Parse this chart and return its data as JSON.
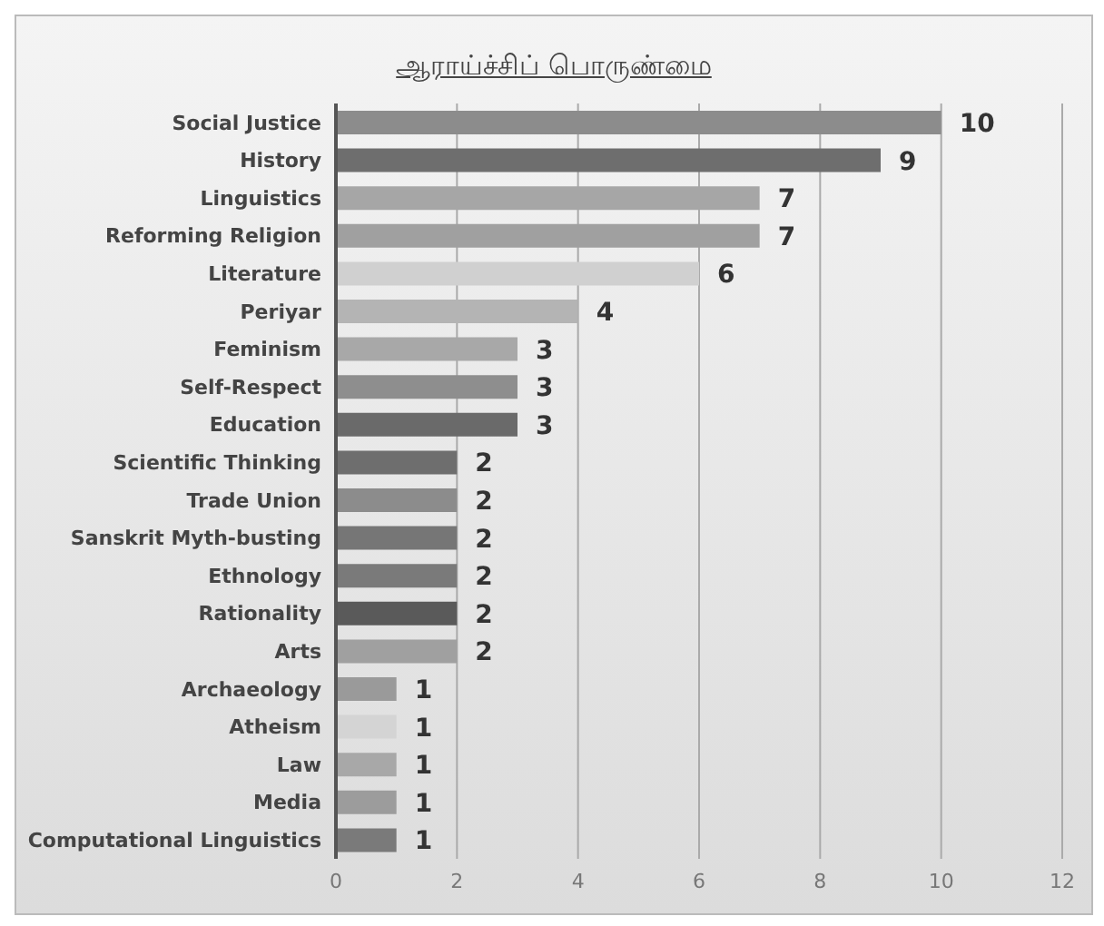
{
  "chart_data": {
    "type": "bar",
    "orientation": "horizontal",
    "title": "ஆராய்ச்சிப் பொருண்மை",
    "categories": [
      "Social Justice",
      "History",
      "Linguistics",
      "Reforming Religion",
      "Literature",
      "Periyar",
      "Feminism",
      "Self-Respect",
      "Education",
      "Scientific Thinking",
      "Trade Union",
      "Sanskrit Myth-busting",
      "Ethnology",
      "Rationality",
      "Arts",
      "Archaeology",
      "Atheism",
      "Law",
      "Media",
      "Computational Linguistics"
    ],
    "values": [
      10,
      9,
      7,
      7,
      6,
      4,
      3,
      3,
      3,
      2,
      2,
      2,
      2,
      2,
      2,
      1,
      1,
      1,
      1,
      1
    ],
    "colors": [
      "#8c8c8c",
      "#6e6e6e",
      "#a6a6a6",
      "#a0a0a0",
      "#d0d0d0",
      "#b4b4b4",
      "#a8a8a8",
      "#8e8e8e",
      "#6a6a6a",
      "#6e6e6e",
      "#8c8c8c",
      "#767676",
      "#7a7a7a",
      "#5a5a5a",
      "#a0a0a0",
      "#9a9a9a",
      "#d4d4d4",
      "#a8a8a8",
      "#9c9c9c",
      "#7a7a7a"
    ],
    "xlim": [
      0,
      12
    ],
    "xticks": [
      0,
      2,
      4,
      6,
      8,
      10,
      12
    ],
    "grid": "x",
    "data_labels": true,
    "legend": false
  }
}
